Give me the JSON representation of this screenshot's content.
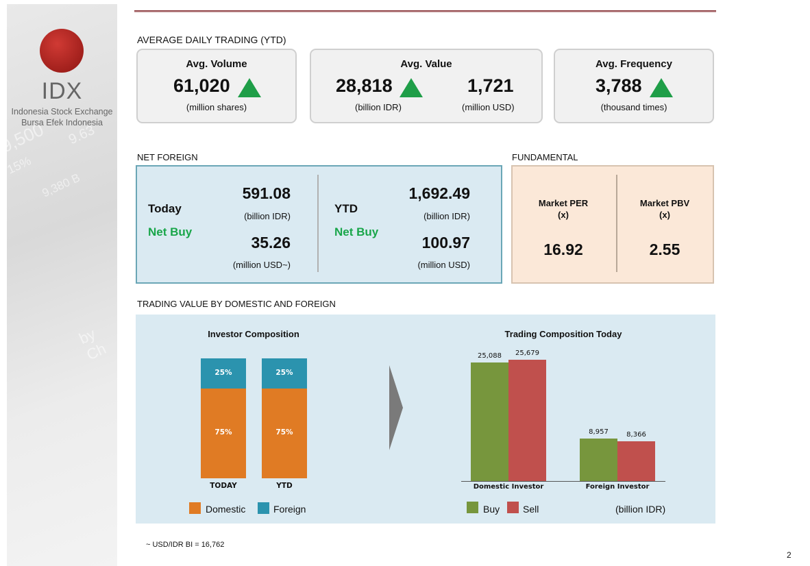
{
  "logo": {
    "name": "IDX",
    "line1": "Indonesia Stock Exchange",
    "line2": "Bursa  Efek  Indonesia"
  },
  "adt": {
    "title": "AVERAGE DAILY TRADING (YTD)",
    "volume": {
      "label": "Avg. Volume",
      "value": "61,020",
      "unit": "(million shares)",
      "trend": "up"
    },
    "value": {
      "label": "Avg. Value",
      "value_idr": "28,818",
      "unit_idr": "(billion IDR)",
      "value_usd": "1,721",
      "unit_usd": "(million USD)",
      "trend": "up"
    },
    "frequency": {
      "label": "Avg. Frequency",
      "value": "3,788",
      "unit": "(thousand times)",
      "trend": "up"
    }
  },
  "net_foreign": {
    "title": "NET FOREIGN",
    "today": {
      "label": "Today",
      "status": "Net Buy",
      "idr": "591.08",
      "idr_unit": "(billion IDR)",
      "usd": "35.26",
      "usd_unit": "(million USD~)"
    },
    "ytd": {
      "label": "YTD",
      "status": "Net Buy",
      "idr": "1,692.49",
      "idr_unit": "(billion IDR)",
      "usd": "100.97",
      "usd_unit": "(million USD)"
    }
  },
  "fundamental": {
    "title": "FUNDAMENTAL",
    "per_label": "Market PER",
    "per_unit": "(x)",
    "per": "16.92",
    "pbv_label": "Market PBV",
    "pbv_unit": "(x)",
    "pbv": "2.55"
  },
  "trading": {
    "title": "TRADING VALUE BY DOMESTIC AND FOREIGN"
  },
  "footnote": "~ USD/IDR BI = 16,762",
  "page_number": "2",
  "colors": {
    "domestic": "#e07b24",
    "foreign": "#2b93ae",
    "buy": "#77963d",
    "sell": "#c0504d",
    "panel": "#daeaf2",
    "fundamental": "#fbe8d8",
    "up": "#1f9e48"
  },
  "chart_data": [
    {
      "type": "bar",
      "stacked": true,
      "title": "Investor Composition",
      "categories": [
        "TODAY",
        "YTD"
      ],
      "series": [
        {
          "name": "Domestic",
          "values": [
            75,
            75
          ],
          "labels": [
            "75%",
            "75%"
          ]
        },
        {
          "name": "Foreign",
          "values": [
            25,
            25
          ],
          "labels": [
            "25%",
            "25%"
          ]
        }
      ],
      "legend": "bottom"
    },
    {
      "type": "bar",
      "title": "Trading Composition Today",
      "categories": [
        "Domestic Investor",
        "Foreign Investor"
      ],
      "series": [
        {
          "name": "Buy",
          "values": [
            25088,
            8957
          ],
          "labels": [
            "25,088",
            "8,957"
          ]
        },
        {
          "name": "Sell",
          "values": [
            25679,
            8366
          ],
          "labels": [
            "25,679",
            "8,366"
          ]
        }
      ],
      "unit": "(billion IDR)",
      "legend": "bottom"
    }
  ]
}
